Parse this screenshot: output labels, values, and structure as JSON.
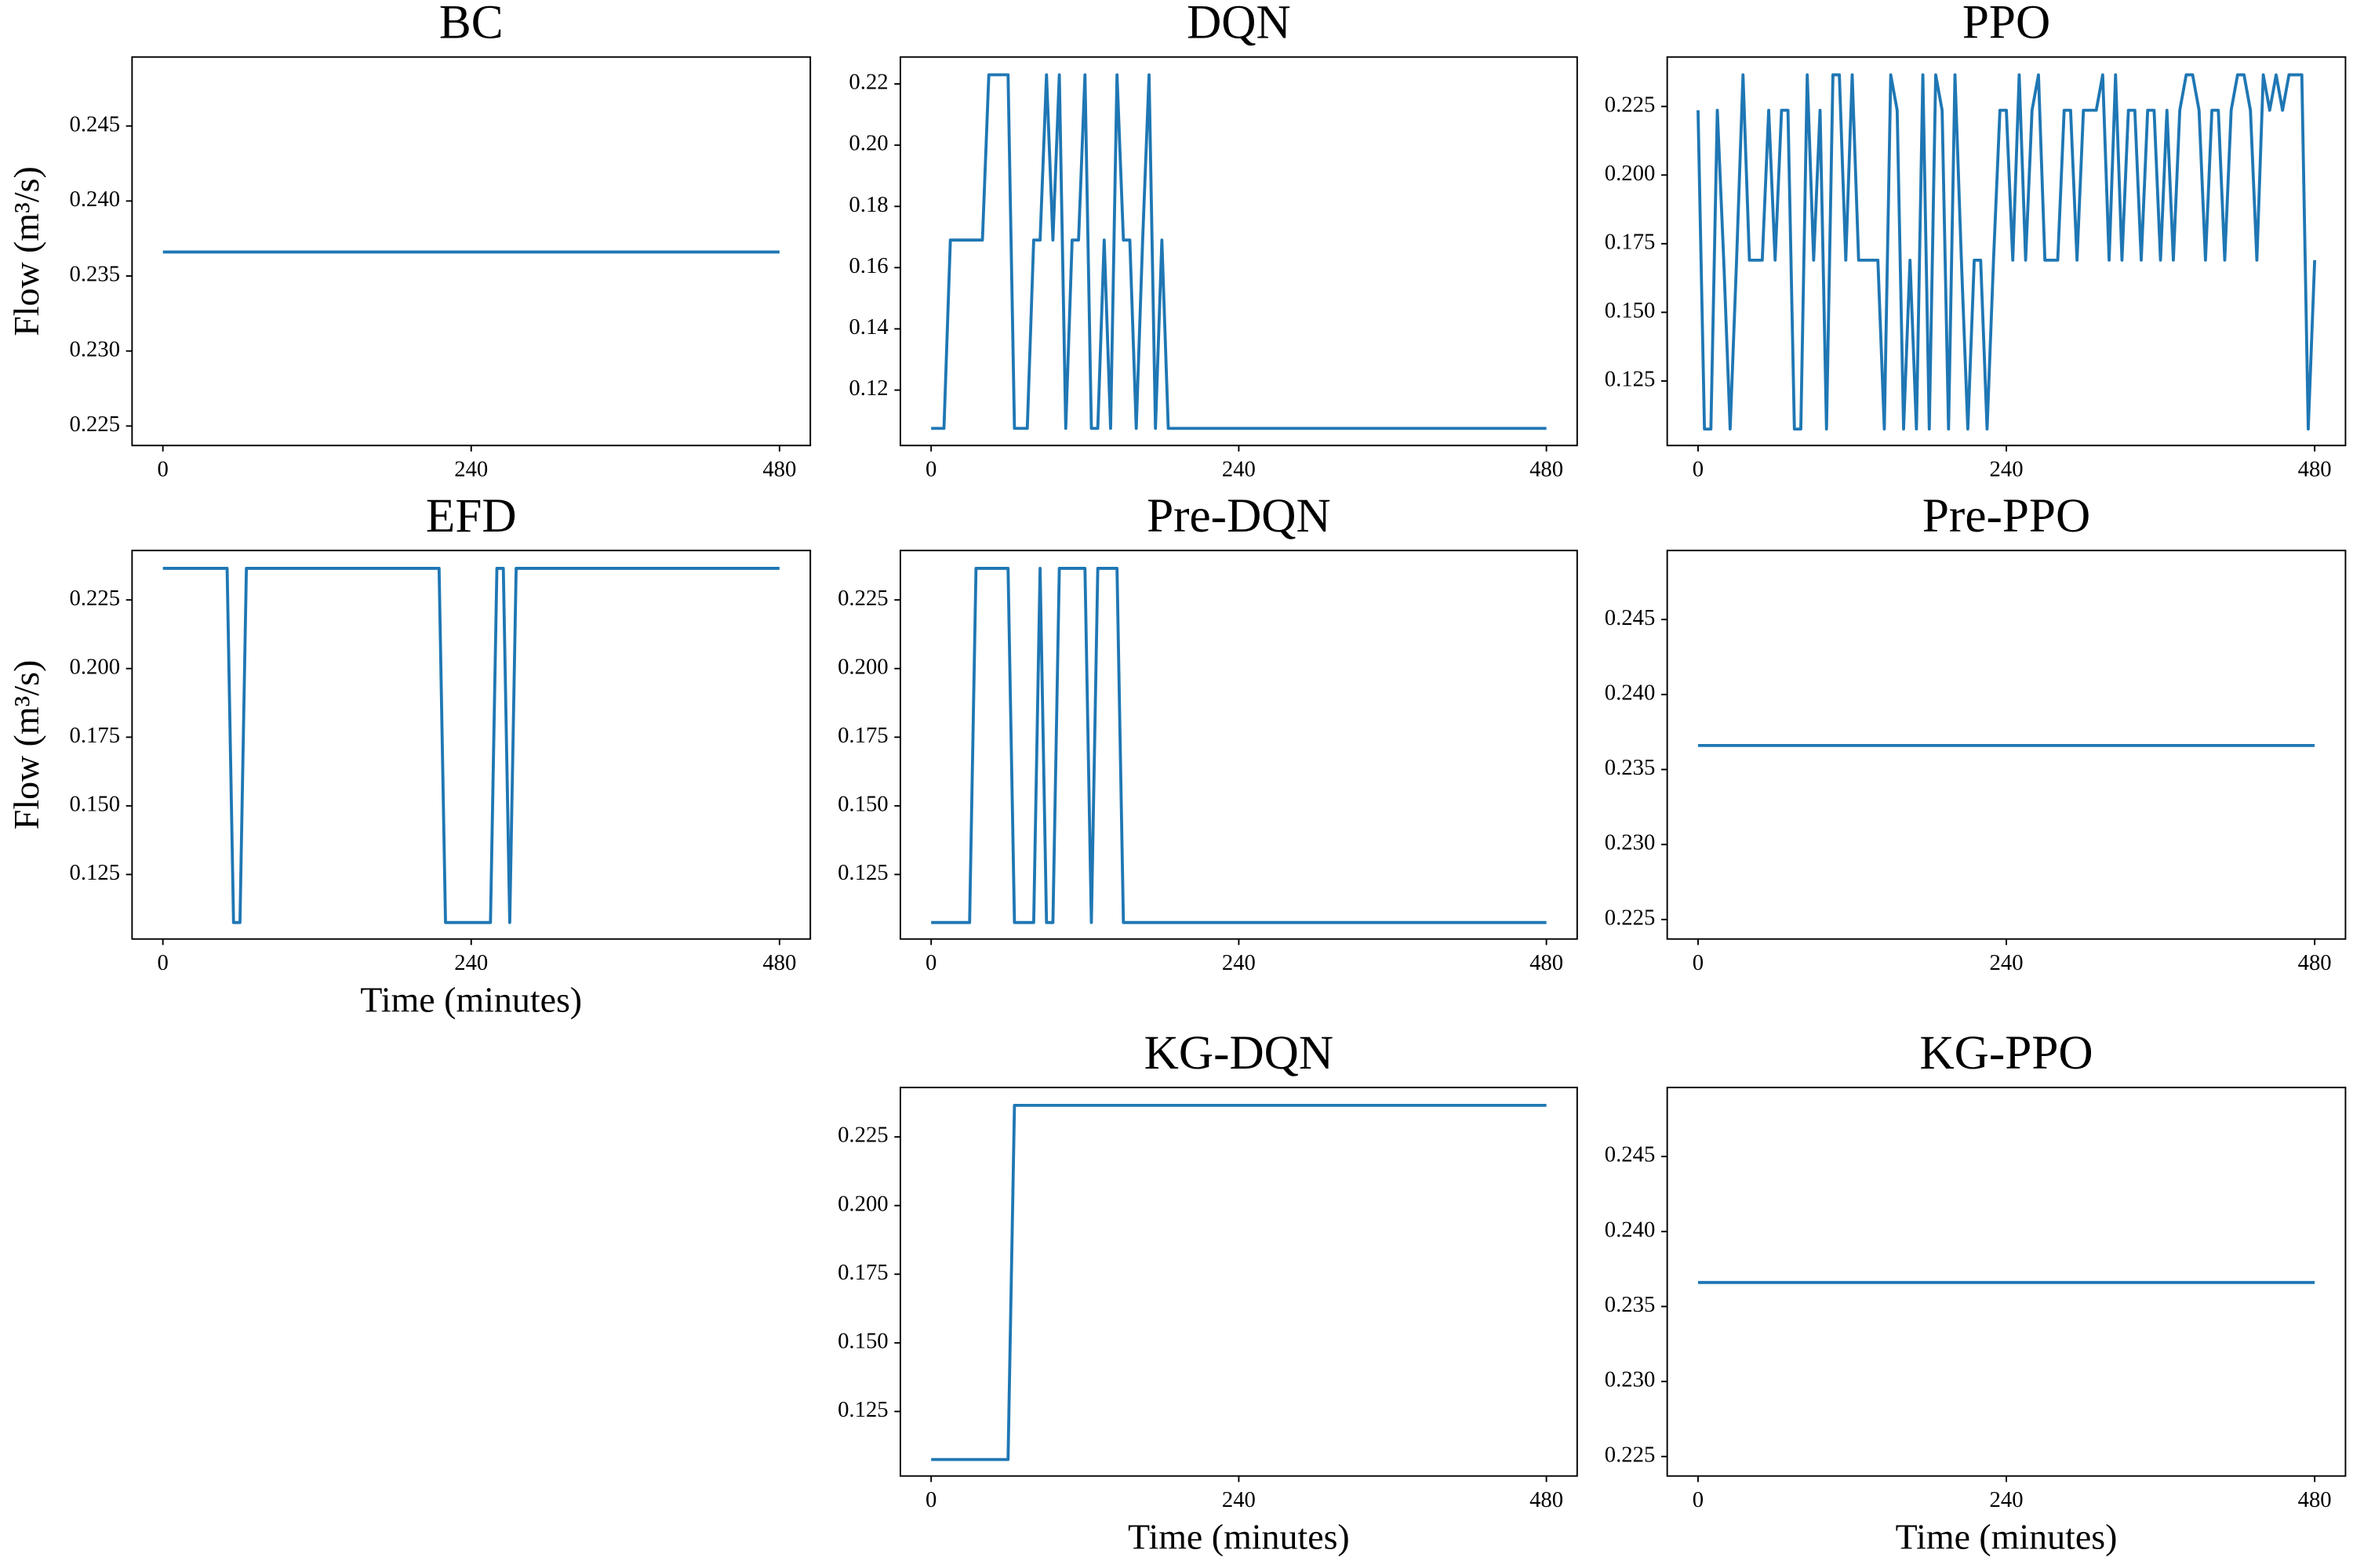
{
  "chart_data": [
    {
      "type": "line",
      "title": "BC",
      "ylabel": "Flow (m³/s)",
      "color": "#1f77b4",
      "x": [
        0,
        480
      ],
      "values": [
        0.2366,
        0.2366
      ],
      "xlim": [
        -24,
        504
      ],
      "ylim": [
        0.2237,
        0.2496
      ],
      "xticks": [
        0,
        240,
        480
      ],
      "yticks": [
        0.225,
        {
          "value": 0.23,
          "label": "0.230"
        },
        0.235,
        {
          "value": 0.24,
          "label": "0.240"
        },
        0.245
      ]
    },
    {
      "type": "line",
      "title": "DQN",
      "color": "#1f77b4",
      "x": [
        0,
        5,
        10,
        15,
        20,
        25,
        30,
        35,
        40,
        45,
        50,
        55,
        60,
        65,
        70,
        75,
        80,
        85,
        90,
        95,
        100,
        105,
        110,
        115,
        120,
        125,
        130,
        135,
        140,
        145,
        150,
        155,
        160,
        165,
        170,
        175,
        180,
        185,
        190,
        480
      ],
      "values": [
        0.1075,
        0.1075,
        0.1075,
        0.169,
        0.169,
        0.169,
        0.169,
        0.169,
        0.169,
        0.223,
        0.223,
        0.223,
        0.223,
        0.1075,
        0.1075,
        0.1075,
        0.169,
        0.169,
        0.223,
        0.169,
        0.223,
        0.1075,
        0.169,
        0.169,
        0.223,
        0.1075,
        0.1075,
        0.169,
        0.1075,
        0.223,
        0.169,
        0.169,
        0.1075,
        0.169,
        0.223,
        0.1075,
        0.169,
        0.1075,
        0.1075,
        0.1075
      ],
      "xlim": [
        -24,
        504
      ],
      "ylim": [
        0.1019,
        0.2288
      ],
      "xticks": [
        0,
        240,
        480
      ],
      "yticks": [
        0.12,
        0.14,
        0.16,
        0.18,
        {
          "value": 0.2,
          "label": "0.20"
        },
        0.22
      ]
    },
    {
      "type": "line",
      "title": "PPO",
      "color": "#1f77b4",
      "x": [
        0,
        5,
        10,
        15,
        20,
        25,
        30,
        35,
        40,
        45,
        50,
        55,
        60,
        65,
        70,
        75,
        80,
        85,
        90,
        95,
        100,
        105,
        110,
        115,
        120,
        125,
        130,
        135,
        140,
        145,
        150,
        155,
        160,
        165,
        170,
        175,
        180,
        185,
        190,
        195,
        200,
        205,
        210,
        215,
        220,
        225,
        230,
        235,
        240,
        245,
        250,
        255,
        260,
        265,
        270,
        275,
        280,
        285,
        290,
        295,
        300,
        305,
        310,
        315,
        320,
        325,
        330,
        335,
        340,
        345,
        350,
        355,
        360,
        365,
        370,
        375,
        380,
        385,
        390,
        395,
        400,
        405,
        410,
        415,
        420,
        425,
        430,
        435,
        440,
        445,
        450,
        455,
        460,
        465,
        470,
        475,
        480
      ],
      "values": [
        0.2236,
        0.1075,
        0.1075,
        0.2236,
        0.169,
        0.1075,
        0.169,
        0.2365,
        0.169,
        0.169,
        0.169,
        0.2236,
        0.169,
        0.2236,
        0.2236,
        0.1075,
        0.1075,
        0.2365,
        0.169,
        0.2236,
        0.1075,
        0.2365,
        0.2365,
        0.169,
        0.2365,
        0.169,
        0.169,
        0.169,
        0.169,
        0.1075,
        0.2365,
        0.2236,
        0.1075,
        0.169,
        0.1075,
        0.2365,
        0.1075,
        0.2365,
        0.2236,
        0.1075,
        0.2365,
        0.169,
        0.1075,
        0.169,
        0.169,
        0.1075,
        0.169,
        0.2236,
        0.2236,
        0.169,
        0.2365,
        0.169,
        0.2236,
        0.2365,
        0.169,
        0.169,
        0.169,
        0.2236,
        0.2236,
        0.169,
        0.2236,
        0.2236,
        0.2236,
        0.2365,
        0.169,
        0.2365,
        0.169,
        0.2236,
        0.2236,
        0.169,
        0.2236,
        0.2236,
        0.169,
        0.2236,
        0.169,
        0.2236,
        0.2365,
        0.2365,
        0.2236,
        0.169,
        0.2236,
        0.2236,
        0.169,
        0.2236,
        0.2365,
        0.2365,
        0.2236,
        0.169,
        0.2365,
        0.2236,
        0.2365,
        0.2236,
        0.2365,
        0.2365,
        0.2365,
        0.1075,
        0.169
      ],
      "xlim": [
        -24,
        504
      ],
      "ylim": [
        0.1015,
        0.243
      ],
      "xticks": [
        0,
        240,
        480
      ],
      "yticks": [
        0.125,
        {
          "value": 0.15,
          "label": "0.150"
        },
        0.175,
        {
          "value": 0.2,
          "label": "0.200"
        },
        0.225
      ]
    },
    {
      "type": "line",
      "title": "EFD",
      "ylabel": "Flow (m³/s)",
      "xlabel": "Time (minutes)",
      "color": "#1f77b4",
      "x": [
        0,
        50,
        55,
        60,
        65,
        215,
        220,
        255,
        260,
        265,
        270,
        275,
        480
      ],
      "values": [
        0.2365,
        0.2365,
        0.1075,
        0.1075,
        0.2365,
        0.2365,
        0.1075,
        0.1075,
        0.2365,
        0.2365,
        0.1075,
        0.2365,
        0.2365
      ],
      "xlim": [
        -24,
        504
      ],
      "ylim": [
        0.1015,
        0.243
      ],
      "xticks": [
        0,
        240,
        480
      ],
      "yticks": [
        0.125,
        {
          "value": 0.15,
          "label": "0.150"
        },
        0.175,
        {
          "value": 0.2,
          "label": "0.200"
        },
        0.225
      ]
    },
    {
      "type": "line",
      "title": "Pre-DQN",
      "color": "#1f77b4",
      "x": [
        0,
        30,
        35,
        60,
        65,
        80,
        85,
        90,
        95,
        100,
        120,
        125,
        130,
        145,
        150,
        480
      ],
      "values": [
        0.1075,
        0.1075,
        0.2365,
        0.2365,
        0.1075,
        0.1075,
        0.2365,
        0.1075,
        0.1075,
        0.2365,
        0.2365,
        0.1075,
        0.2365,
        0.2365,
        0.1075,
        0.1075
      ],
      "xlim": [
        -24,
        504
      ],
      "ylim": [
        0.1015,
        0.243
      ],
      "xticks": [
        0,
        240,
        480
      ],
      "yticks": [
        0.125,
        {
          "value": 0.15,
          "label": "0.150"
        },
        0.175,
        {
          "value": 0.2,
          "label": "0.200"
        },
        0.225
      ]
    },
    {
      "type": "line",
      "title": "Pre-PPO",
      "color": "#1f77b4",
      "x": [
        0,
        480
      ],
      "values": [
        0.2366,
        0.2366
      ],
      "xlim": [
        -24,
        504
      ],
      "ylim": [
        0.2237,
        0.2496
      ],
      "xticks": [
        0,
        240,
        480
      ],
      "yticks": [
        0.225,
        {
          "value": 0.23,
          "label": "0.230"
        },
        0.235,
        {
          "value": 0.24,
          "label": "0.240"
        },
        0.245
      ]
    },
    {
      "type": "line",
      "title": "KG-DQN",
      "xlabel": "Time (minutes)",
      "color": "#1f77b4",
      "x": [
        0,
        60,
        65,
        480
      ],
      "values": [
        0.1075,
        0.1075,
        0.2365,
        0.2365
      ],
      "xlim": [
        -24,
        504
      ],
      "ylim": [
        0.1015,
        0.243
      ],
      "xticks": [
        0,
        240,
        480
      ],
      "yticks": [
        0.125,
        {
          "value": 0.15,
          "label": "0.150"
        },
        0.175,
        {
          "value": 0.2,
          "label": "0.200"
        },
        0.225
      ]
    },
    {
      "type": "line",
      "title": "KG-PPO",
      "xlabel": "Time (minutes)",
      "color": "#1f77b4",
      "x": [
        0,
        480
      ],
      "values": [
        0.2366,
        0.2366
      ],
      "xlim": [
        -24,
        504
      ],
      "ylim": [
        0.2237,
        0.2496
      ],
      "xticks": [
        0,
        240,
        480
      ],
      "yticks": [
        0.225,
        {
          "value": 0.23,
          "label": "0.230"
        },
        0.235,
        {
          "value": 0.24,
          "label": "0.240"
        },
        0.245
      ]
    }
  ]
}
